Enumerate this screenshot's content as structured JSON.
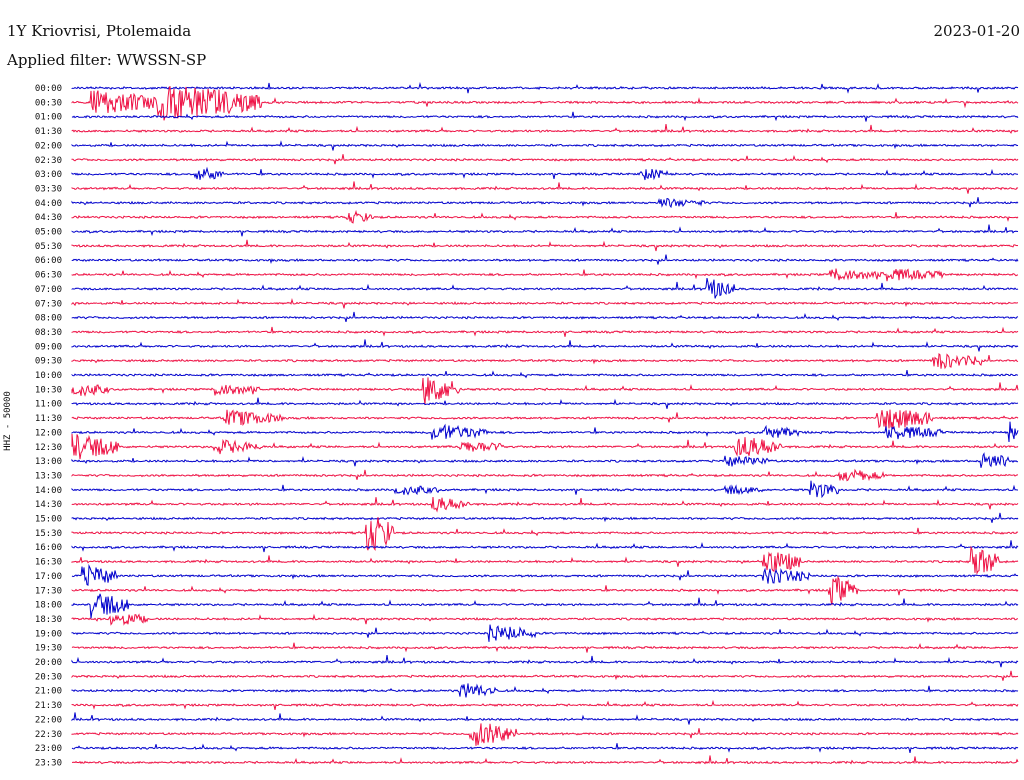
{
  "header": {
    "station": "1Y Kriovrisi, Ptolemaida",
    "date": "2023-01-20",
    "filter": "Applied filter: WWSSN-SP"
  },
  "chart_data": {
    "type": "line",
    "title": "1Y Kriovrisi, Ptolemaida",
    "ylabel": "HHZ - 50000",
    "row_labels": [
      "00:00",
      "00:30",
      "01:00",
      "01:30",
      "02:00",
      "02:30",
      "03:00",
      "03:30",
      "04:00",
      "04:30",
      "05:00",
      "05:30",
      "06:00",
      "06:30",
      "07:00",
      "07:30",
      "08:00",
      "08:30",
      "09:00",
      "09:30",
      "10:00",
      "10:30",
      "11:00",
      "11:30",
      "12:00",
      "12:30",
      "13:00",
      "13:30",
      "14:00",
      "14:30",
      "15:00",
      "15:30",
      "16:00",
      "16:30",
      "17:00",
      "17:30",
      "18:00",
      "18:30",
      "19:00",
      "19:30",
      "20:00",
      "20:30",
      "21:00",
      "21:30",
      "22:00",
      "22:30",
      "23:00",
      "23:30"
    ],
    "series_colors": [
      "#0000cc",
      "#ee1144"
    ],
    "events": [
      {
        "row": 1,
        "x": 0.02,
        "amp": 14,
        "dur": 0.05
      },
      {
        "row": 1,
        "x": 0.09,
        "amp": 20,
        "dur": 0.09
      },
      {
        "row": 6,
        "x": 0.13,
        "amp": 8,
        "dur": 0.01
      },
      {
        "row": 6,
        "x": 0.6,
        "amp": 7,
        "dur": 0.01
      },
      {
        "row": 8,
        "x": 0.62,
        "amp": 5,
        "dur": 0.03
      },
      {
        "row": 9,
        "x": 0.29,
        "amp": 7,
        "dur": 0.01
      },
      {
        "row": 13,
        "x": 0.8,
        "amp": 7,
        "dur": 0.04
      },
      {
        "row": 13,
        "x": 0.86,
        "amp": 7,
        "dur": 0.04
      },
      {
        "row": 14,
        "x": 0.67,
        "amp": 12,
        "dur": 0.01
      },
      {
        "row": 19,
        "x": 0.91,
        "amp": 9,
        "dur": 0.03
      },
      {
        "row": 21,
        "x": 0.0,
        "amp": 8,
        "dur": 0.02
      },
      {
        "row": 21,
        "x": 0.15,
        "amp": 7,
        "dur": 0.03
      },
      {
        "row": 21,
        "x": 0.37,
        "amp": 16,
        "dur": 0.02
      },
      {
        "row": 23,
        "x": 0.16,
        "amp": 9,
        "dur": 0.04
      },
      {
        "row": 23,
        "x": 0.85,
        "amp": 14,
        "dur": 0.04
      },
      {
        "row": 24,
        "x": 0.38,
        "amp": 9,
        "dur": 0.04
      },
      {
        "row": 24,
        "x": 0.73,
        "amp": 7,
        "dur": 0.02
      },
      {
        "row": 24,
        "x": 0.86,
        "amp": 8,
        "dur": 0.04
      },
      {
        "row": 24,
        "x": 0.99,
        "amp": 12,
        "dur": 0.02
      },
      {
        "row": 25,
        "x": 0.0,
        "amp": 14,
        "dur": 0.03
      },
      {
        "row": 25,
        "x": 0.15,
        "amp": 8,
        "dur": 0.03
      },
      {
        "row": 25,
        "x": 0.41,
        "amp": 7,
        "dur": 0.03
      },
      {
        "row": 25,
        "x": 0.7,
        "amp": 12,
        "dur": 0.03
      },
      {
        "row": 26,
        "x": 0.69,
        "amp": 6,
        "dur": 0.03
      },
      {
        "row": 26,
        "x": 0.96,
        "amp": 10,
        "dur": 0.01
      },
      {
        "row": 27,
        "x": 0.81,
        "amp": 7,
        "dur": 0.03
      },
      {
        "row": 28,
        "x": 0.34,
        "amp": 6,
        "dur": 0.03
      },
      {
        "row": 28,
        "x": 0.69,
        "amp": 5,
        "dur": 0.02
      },
      {
        "row": 28,
        "x": 0.78,
        "amp": 10,
        "dur": 0.01
      },
      {
        "row": 29,
        "x": 0.38,
        "amp": 8,
        "dur": 0.02
      },
      {
        "row": 31,
        "x": 0.31,
        "amp": 22,
        "dur": 0.01
      },
      {
        "row": 33,
        "x": 0.73,
        "amp": 14,
        "dur": 0.02
      },
      {
        "row": 33,
        "x": 0.95,
        "amp": 18,
        "dur": 0.01
      },
      {
        "row": 34,
        "x": 0.01,
        "amp": 12,
        "dur": 0.02
      },
      {
        "row": 34,
        "x": 0.73,
        "amp": 9,
        "dur": 0.03
      },
      {
        "row": 35,
        "x": 0.8,
        "amp": 16,
        "dur": 0.01
      },
      {
        "row": 36,
        "x": 0.02,
        "amp": 14,
        "dur": 0.02
      },
      {
        "row": 37,
        "x": 0.04,
        "amp": 8,
        "dur": 0.02
      },
      {
        "row": 38,
        "x": 0.44,
        "amp": 9,
        "dur": 0.03
      },
      {
        "row": 42,
        "x": 0.41,
        "amp": 9,
        "dur": 0.02
      },
      {
        "row": 45,
        "x": 0.42,
        "amp": 14,
        "dur": 0.03
      }
    ]
  }
}
